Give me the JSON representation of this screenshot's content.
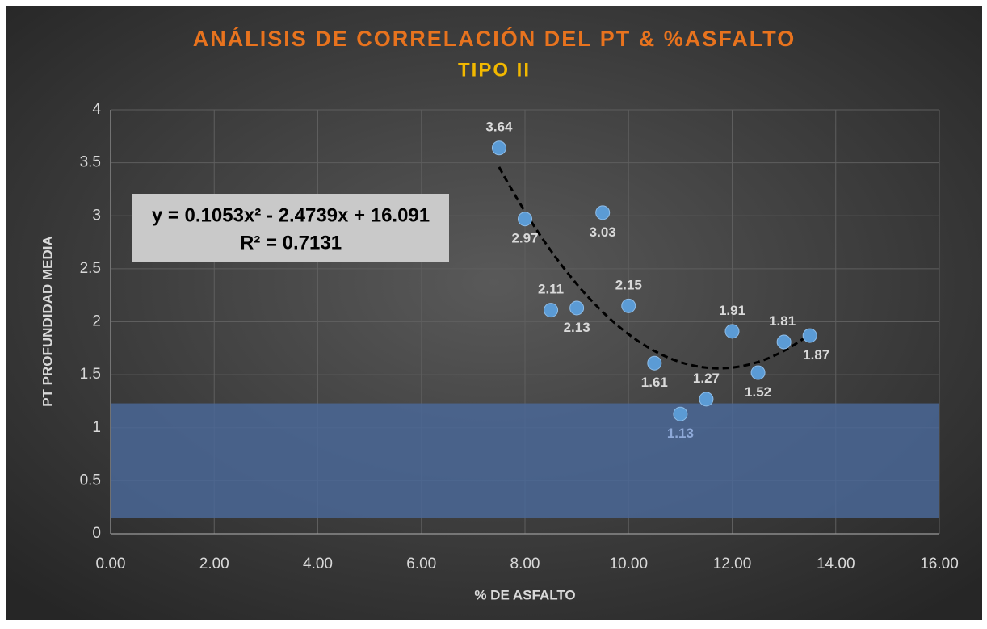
{
  "chart_data": {
    "type": "scatter",
    "title": "ANÁLISIS DE CORRELACIÓN DEL PT & %ASFALTO",
    "subtitle": "TIPO II",
    "x_label": "% DE ASFALTO",
    "y_label": "PT PROFUNDIDAD MEDIA",
    "x": [
      7.5,
      8,
      8.5,
      9,
      9.5,
      10,
      10.5,
      11,
      11.5,
      12,
      12.5,
      13,
      13.5
    ],
    "values": [
      3.64,
      2.97,
      2.11,
      2.13,
      3.03,
      2.15,
      1.61,
      1.13,
      1.27,
      1.91,
      1.52,
      1.81,
      1.87
    ],
    "color": "#5b9bd5",
    "xlim": [
      0,
      16
    ],
    "xticks": [
      {
        "value": 0,
        "label": "0.00"
      },
      {
        "value": 2,
        "label": "2.00"
      },
      {
        "value": 4,
        "label": "4.00"
      },
      {
        "value": 6,
        "label": "6.00"
      },
      {
        "value": 8,
        "label": "8.00"
      },
      {
        "value": 10,
        "label": "10.00"
      },
      {
        "value": 12,
        "label": "12.00"
      },
      {
        "value": 14,
        "label": "14.00"
      },
      {
        "value": 16,
        "label": "16.00"
      }
    ],
    "ylim": [
      0,
      4
    ],
    "yticks": [
      0,
      0.5,
      1,
      1.5,
      2,
      2.5,
      3,
      3.5,
      4
    ],
    "grid": true,
    "band": {
      "ymin": 0.15,
      "ymax": 1.23,
      "color": "#4a6797"
    },
    "trendline": {
      "type": "polynomial",
      "coefficients": [
        0.1053,
        -2.4739,
        16.091
      ],
      "xlim": [
        7.5,
        13.5
      ],
      "equation": "y = 0.1053x² - 2.4739x + 16.091",
      "r2_label": "R² = 0.7131"
    }
  }
}
